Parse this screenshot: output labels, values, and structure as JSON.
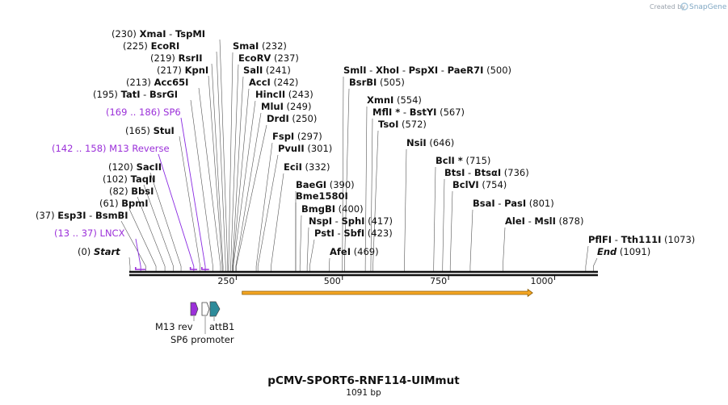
{
  "header": {
    "credit_text": "Created by",
    "brand": "SnapGene"
  },
  "plasmid": {
    "name": "pCMV-SPORT6-RNF114-UIMmut",
    "length_text": "1091 bp",
    "length": 1091
  },
  "axis": {
    "ticks": [
      {
        "value": 250,
        "label": "250"
      },
      {
        "value": 500,
        "label": "500"
      },
      {
        "value": 750,
        "label": "750"
      },
      {
        "value": 1000,
        "label": "1000"
      }
    ]
  },
  "orf": {
    "start": 264,
    "end": 948,
    "color": "#f5a623"
  },
  "colors": {
    "feature": "#9b30d9",
    "promoter": "#ffffff",
    "attb": "#2e8b9a",
    "orf": "#f5a623",
    "enzyme": "#111111"
  },
  "labels": [
    {
      "enzymes": [
        {
          "name": "XmaI"
        },
        {
          "name": "TspMI"
        }
      ],
      "pos_text": "(230)",
      "pos_first": true,
      "site": 230
    },
    {
      "enzymes": [
        {
          "name": "EcoRI"
        }
      ],
      "pos_text": "(225)",
      "pos_first": true,
      "site": 225
    },
    {
      "enzymes": [
        {
          "name": "RsrII"
        }
      ],
      "pos_text": "(219)",
      "pos_first": true,
      "site": 219
    },
    {
      "enzymes": [
        {
          "name": "KpnI"
        }
      ],
      "pos_text": "(217)",
      "pos_first": true,
      "site": 217
    },
    {
      "enzymes": [
        {
          "name": "Acc65I"
        }
      ],
      "pos_text": "(213)",
      "pos_first": true,
      "site": 213
    },
    {
      "enzymes": [
        {
          "name": "TatI"
        },
        {
          "name": "BsrGI"
        }
      ],
      "pos_text": "(195)",
      "pos_first": true,
      "site": 195
    },
    {
      "feature": true,
      "name": "SP6",
      "pos_text": "(169 .. 186)",
      "pos_first": true,
      "site": 177
    },
    {
      "enzymes": [
        {
          "name": "StuI"
        }
      ],
      "pos_text": "(165)",
      "pos_first": true,
      "site": 165
    },
    {
      "feature": true,
      "name": "M13 Reverse",
      "pos_text": "(142 .. 158)",
      "pos_first": true,
      "site": 150
    },
    {
      "enzymes": [
        {
          "name": "SacII"
        }
      ],
      "pos_text": "(120)",
      "pos_first": true,
      "site": 120
    },
    {
      "enzymes": [
        {
          "name": "TaqII"
        }
      ],
      "pos_text": "(102)",
      "pos_first": true,
      "site": 102
    },
    {
      "enzymes": [
        {
          "name": "BbsI"
        }
      ],
      "pos_text": "(82)",
      "pos_first": true,
      "site": 82
    },
    {
      "enzymes": [
        {
          "name": "BpmI"
        }
      ],
      "pos_text": "(61)",
      "pos_first": true,
      "site": 61
    },
    {
      "enzymes": [
        {
          "name": "Esp3I"
        },
        {
          "name": "BsmBI"
        }
      ],
      "pos_text": "(37)",
      "pos_first": true,
      "site": 37
    },
    {
      "feature": true,
      "name": "LNCX",
      "pos_text": "(13 .. 37)",
      "pos_first": true,
      "site": 25
    },
    {
      "enzymes": [
        {
          "name": "Start",
          "italic": true
        }
      ],
      "pos_text": "(0)",
      "pos_first": true,
      "site": 0
    },
    {
      "enzymes": [
        {
          "name": "SmaI"
        }
      ],
      "pos_text": "(232)",
      "pos_first": false,
      "site": 232
    },
    {
      "enzymes": [
        {
          "name": "EcoRV"
        }
      ],
      "pos_text": "(237)",
      "pos_first": false,
      "site": 237
    },
    {
      "enzymes": [
        {
          "name": "SalI"
        }
      ],
      "pos_text": "(241)",
      "pos_first": false,
      "site": 241
    },
    {
      "enzymes": [
        {
          "name": "AccI"
        }
      ],
      "pos_text": "(242)",
      "pos_first": false,
      "site": 242
    },
    {
      "enzymes": [
        {
          "name": "HincII"
        }
      ],
      "pos_text": "(243)",
      "pos_first": false,
      "site": 243
    },
    {
      "enzymes": [
        {
          "name": "MluI"
        }
      ],
      "pos_text": "(249)",
      "pos_first": false,
      "site": 249
    },
    {
      "enzymes": [
        {
          "name": "DrdI"
        }
      ],
      "pos_text": "(250)",
      "pos_first": false,
      "site": 250
    },
    {
      "enzymes": [
        {
          "name": "FspI"
        }
      ],
      "pos_text": "(297)",
      "pos_first": false,
      "site": 297
    },
    {
      "enzymes": [
        {
          "name": "PvuII"
        }
      ],
      "pos_text": "(301)",
      "pos_first": false,
      "site": 301
    },
    {
      "enzymes": [
        {
          "name": "EciI"
        }
      ],
      "pos_text": "(332)",
      "pos_first": false,
      "site": 332
    },
    {
      "enzymes": [
        {
          "name": "BaeGI"
        }
      ],
      "pos_text": "(390)",
      "pos_first": false,
      "site": 390
    },
    {
      "enzymes": [
        {
          "name": "Bme1580I"
        }
      ],
      "pos_text": "",
      "pos_first": false,
      "site": 390
    },
    {
      "enzymes": [
        {
          "name": "BmgBI"
        }
      ],
      "pos_text": "(400)",
      "pos_first": false,
      "site": 400
    },
    {
      "enzymes": [
        {
          "name": "NspI"
        },
        {
          "name": "SphI"
        }
      ],
      "pos_text": "(417)",
      "pos_first": false,
      "site": 417
    },
    {
      "enzymes": [
        {
          "name": "PstI"
        },
        {
          "name": "SbfI"
        }
      ],
      "pos_text": "(423)",
      "pos_first": false,
      "site": 423
    },
    {
      "enzymes": [
        {
          "name": "AfeI"
        }
      ],
      "pos_text": "(469)",
      "pos_first": false,
      "site": 469
    },
    {
      "enzymes": [
        {
          "name": "SmlI"
        },
        {
          "name": "XhoI"
        },
        {
          "name": "PspXI"
        },
        {
          "name": "PaeR7I"
        }
      ],
      "pos_text": "(500)",
      "pos_first": false,
      "site": 500
    },
    {
      "enzymes": [
        {
          "name": "BsrBI"
        }
      ],
      "pos_text": "(505)",
      "pos_first": false,
      "site": 505
    },
    {
      "enzymes": [
        {
          "name": "XmnI"
        }
      ],
      "pos_text": "(554)",
      "pos_first": false,
      "site": 554
    },
    {
      "enzymes": [
        {
          "name": "MflI *"
        },
        {
          "name": "BstYI"
        }
      ],
      "pos_text": "(567)",
      "pos_first": false,
      "site": 567
    },
    {
      "enzymes": [
        {
          "name": "TsoI"
        }
      ],
      "pos_text": "(572)",
      "pos_first": false,
      "site": 572
    },
    {
      "enzymes": [
        {
          "name": "NsiI"
        }
      ],
      "pos_text": "(646)",
      "pos_first": false,
      "site": 646
    },
    {
      "enzymes": [
        {
          "name": "BclI *"
        }
      ],
      "pos_text": "(715)",
      "pos_first": false,
      "site": 715
    },
    {
      "enzymes": [
        {
          "name": "BtsI"
        },
        {
          "name": "BtsαI"
        }
      ],
      "pos_text": "(736)",
      "pos_first": false,
      "site": 736
    },
    {
      "enzymes": [
        {
          "name": "BclVI"
        }
      ],
      "pos_text": "(754)",
      "pos_first": false,
      "site": 754
    },
    {
      "enzymes": [
        {
          "name": "BsaI"
        },
        {
          "name": "PasI"
        }
      ],
      "pos_text": "(801)",
      "pos_first": false,
      "site": 801
    },
    {
      "enzymes": [
        {
          "name": "AleI"
        },
        {
          "name": "MslI"
        }
      ],
      "pos_text": "(878)",
      "pos_first": false,
      "site": 878
    },
    {
      "enzymes": [
        {
          "name": "PflFI"
        },
        {
          "name": "Tth111I"
        }
      ],
      "pos_text": "(1073)",
      "pos_first": false,
      "site": 1073
    },
    {
      "enzymes": [
        {
          "name": "End",
          "italic": true
        }
      ],
      "pos_text": "(1091)",
      "pos_first": false,
      "site": 1091
    }
  ],
  "feature_ranges": [
    {
      "name": "LNCX",
      "start": 13,
      "end": 37
    },
    {
      "name": "M13 Reverse",
      "start": 142,
      "end": 158
    },
    {
      "name": "SP6",
      "start": 169,
      "end": 186
    }
  ],
  "legend": {
    "m13_rev": "M13 rev",
    "attb1": "attB1",
    "sp6_promoter": "SP6 promoter"
  }
}
